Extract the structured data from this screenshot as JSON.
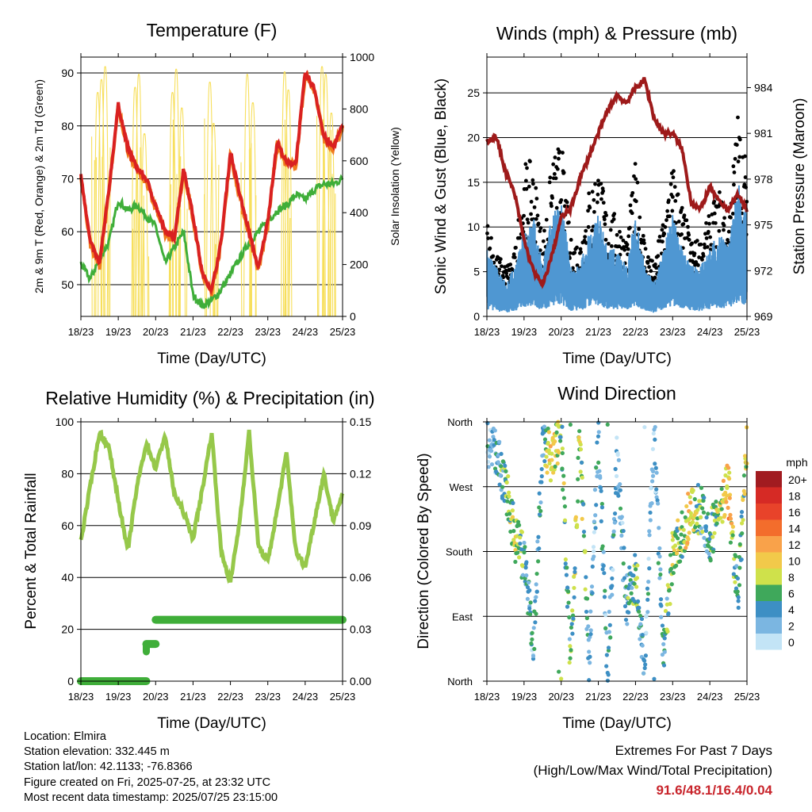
{
  "colors": {
    "temp_2m": "#d92121",
    "temp_9m": "#f07b1c",
    "dewpoint": "#3fae39",
    "insolation": "#f7df5c",
    "wind": "#4f97d2",
    "gust": "#000000",
    "pressure": "#9e1a1a",
    "rh": "#96c84a",
    "precip": "#3fae39",
    "extremes": "#c8242b"
  },
  "time_ticks": [
    "18/23",
    "19/23",
    "20/23",
    "21/23",
    "22/23",
    "23/23",
    "24/23",
    "25/23"
  ],
  "charts": {
    "temperature": {
      "title": "Temperature (F)",
      "xlabel": "Time (Day/UTC)",
      "ylabel": "2m & 9m T (Red, Orange) & 2m Td (Green)",
      "ylabel_right": "Solar Insolation (Yellow)",
      "yticks": [
        "50",
        "60",
        "70",
        "80",
        "90"
      ],
      "yticks_right": [
        "0",
        "200",
        "400",
        "600",
        "800",
        "1000"
      ]
    },
    "winds": {
      "title": "Winds (mph) & Pressure (mb)",
      "xlabel": "Time (Day/UTC)",
      "ylabel": "Sonic Wind & Gust (Blue, Black)",
      "ylabel_right": "Station Pressure (Maroon)",
      "yticks": [
        "0",
        "5",
        "10",
        "15",
        "20",
        "25"
      ],
      "yticks_right": [
        "969",
        "972",
        "975",
        "978",
        "981",
        "984"
      ]
    },
    "humidity": {
      "title": "Relative Humidity (%) & Precipitation (in)",
      "xlabel": "Time (Day/UTC)",
      "ylabel": "Percent & Total Rainfall",
      "yticks": [
        "0",
        "20",
        "40",
        "60",
        "80",
        "100"
      ],
      "yticks_right": [
        "0.00",
        "0.03",
        "0.06",
        "0.09",
        "0.12",
        "0.15"
      ]
    },
    "direction": {
      "title": "Wind Direction",
      "xlabel": "Time (Day/UTC)",
      "ylabel": "Direction (Colored By Speed)",
      "yticks": [
        "North",
        "East",
        "South",
        "West",
        "North"
      ],
      "legend_title": "mph",
      "legend_labels": [
        "20+",
        "18",
        "16",
        "14",
        "12",
        "10",
        "8",
        "6",
        "4",
        "2",
        "0"
      ],
      "legend_colors": [
        "#a11b20",
        "#d62a25",
        "#e8432a",
        "#f36d2c",
        "#f9a24a",
        "#f2c94a",
        "#cfe14b",
        "#3fa85b",
        "#3d8fc4",
        "#7bb6e1",
        "#c3e4f6"
      ]
    }
  },
  "chart_data": [
    {
      "type": "line",
      "title": "Temperature (F)",
      "xlabel": "Time (Day/UTC)",
      "ylabel": "2m & 9m T (Red, Orange) & 2m Td (Green)",
      "y2label": "Solar Insolation (Yellow)",
      "x": [
        0,
        0.25,
        0.5,
        0.75,
        1,
        1.25,
        1.5,
        1.75,
        2,
        2.25,
        2.5,
        2.75,
        3,
        3.25,
        3.5,
        3.75,
        4,
        4.25,
        4.5,
        4.75,
        5,
        5.25,
        5.5,
        5.75,
        6,
        6.25,
        6.5,
        6.75,
        7
      ],
      "x_unit": "days since 18/23",
      "ylim": [
        44,
        93
      ],
      "y2lim": [
        0,
        1000
      ],
      "series": [
        {
          "values": [
            71,
            58,
            54,
            68,
            84,
            76,
            72,
            70,
            65,
            60,
            59,
            72,
            63,
            52,
            49,
            58,
            75,
            67,
            60,
            53,
            62,
            77,
            73,
            73,
            90,
            87,
            78,
            76,
            80
          ]
        },
        {
          "values": [
            54,
            51,
            55,
            58,
            66,
            64,
            65,
            63,
            61,
            54,
            57,
            60,
            48,
            46,
            47,
            49,
            52,
            55,
            58,
            60,
            62,
            64,
            65,
            67,
            66,
            68,
            69,
            69,
            70
          ]
        },
        {
          "peaks": [
            0.45,
            0.55,
            0.65,
            1.45,
            1.55,
            1.7,
            2.45,
            2.55,
            2.7,
            3.45,
            3.55,
            4.45,
            4.6,
            5.45,
            5.55,
            6.45,
            6.55,
            6.7
          ],
          "peak_values": [
            860,
            910,
            960,
            880,
            930,
            700,
            860,
            950,
            800,
            900,
            740,
            930,
            820,
            940,
            870,
            960,
            930,
            780
          ]
        }
      ]
    },
    {
      "type": "line",
      "title": "Winds (mph) & Pressure (mb)",
      "xlabel": "Time (Day/UTC)",
      "ylabel": "Sonic Wind & Gust (Blue, Black)",
      "y2label": "Station Pressure (Maroon)",
      "ylim": [
        0,
        29
      ],
      "y2lim": [
        969,
        986
      ],
      "x": [
        0,
        0.25,
        0.5,
        0.75,
        1,
        1.25,
        1.5,
        1.75,
        2,
        2.25,
        2.5,
        2.75,
        3,
        3.25,
        3.5,
        3.75,
        4,
        4.25,
        4.5,
        4.75,
        5,
        5.25,
        5.5,
        5.75,
        6,
        6.25,
        6.5,
        6.75,
        7
      ],
      "series": [
        {
          "values": [
            4,
            3,
            2,
            3,
            5,
            6,
            3,
            6,
            7,
            3,
            3,
            5,
            6,
            4,
            4,
            3,
            6,
            3,
            2,
            4,
            6,
            4,
            3,
            3,
            4,
            5,
            4,
            8,
            6
          ]
        },
        {
          "values": [
            8,
            5,
            4,
            5,
            12,
            12,
            6,
            12,
            14,
            6,
            6,
            10,
            12,
            8,
            8,
            6,
            12,
            6,
            4,
            8,
            12,
            9,
            6,
            6,
            8,
            10,
            8,
            16,
            12
          ]
        },
        {
          "values": [
            980.5,
            980.8,
            978.5,
            977,
            974,
            972,
            971,
            973,
            975.5,
            976,
            978,
            979.5,
            981,
            982.5,
            983.5,
            983,
            984,
            984.5,
            982,
            981,
            981,
            980,
            976.5,
            976,
            977.5,
            976.5,
            976,
            977,
            976
          ]
        }
      ]
    },
    {
      "type": "line",
      "title": "Relative Humidity (%) & Precipitation (in)",
      "xlabel": "Time (Day/UTC)",
      "ylabel": "Percent & Total Rainfall",
      "ylim": [
        0,
        100
      ],
      "y2lim": [
        0,
        0.15
      ],
      "x": [
        0,
        0.25,
        0.5,
        0.75,
        1,
        1.25,
        1.5,
        1.75,
        2,
        2.25,
        2.5,
        2.75,
        3,
        3.25,
        3.5,
        3.75,
        4,
        4.25,
        4.5,
        4.75,
        5,
        5.25,
        5.5,
        5.75,
        6,
        6.25,
        6.5,
        6.75,
        7
      ],
      "series": [
        {
          "values": [
            54,
            75,
            96,
            90,
            70,
            50,
            75,
            92,
            82,
            95,
            72,
            65,
            55,
            74,
            96,
            50,
            38,
            62,
            96,
            52,
            46,
            66,
            88,
            50,
            44,
            62,
            80,
            62,
            72
          ]
        },
        {
          "values": [
            0,
            0,
            0,
            0,
            0,
            0,
            0.01,
            0.02,
            0.035,
            0.035,
            0.035,
            0.035,
            0.035,
            0.035,
            0.035,
            0.035,
            0.035,
            0.035,
            0.035,
            0.035,
            0.035,
            0.035,
            0.035,
            0.035,
            0.035,
            0.035,
            0.035,
            0.035,
            0.035
          ]
        }
      ]
    },
    {
      "type": "scatter",
      "title": "Wind Direction",
      "xlabel": "Time (Day/UTC)",
      "ylabel": "Direction (Colored By Speed)",
      "ylim": [
        0,
        360
      ],
      "x": [
        0,
        0.25,
        0.5,
        0.75,
        1,
        1.25,
        1.5,
        1.75,
        2,
        2.25,
        2.5,
        2.75,
        3,
        3.25,
        3.5,
        3.75,
        4,
        4.25,
        4.5,
        4.75,
        5,
        5.25,
        5.5,
        5.75,
        6,
        6.25,
        6.5,
        6.75,
        7
      ],
      "direction": [
        330,
        320,
        270,
        200,
        170,
        40,
        330,
        310,
        350,
        20,
        350,
        20,
        340,
        10,
        310,
        110,
        150,
        20,
        350,
        30,
        180,
        200,
        240,
        240,
        200,
        230,
        270,
        110,
        340
      ],
      "speed": [
        2,
        3,
        6,
        8,
        5,
        3,
        4,
        10,
        7,
        5,
        8,
        4,
        3,
        4,
        2,
        4,
        6,
        3,
        2,
        4,
        8,
        7,
        10,
        5,
        4,
        8,
        11,
        4,
        9
      ]
    }
  ],
  "footer": {
    "location": "Location: Elmira",
    "elevation": "Station elevation: 332.445 m",
    "latlon": "Station lat/lon: 42.1133; -76.8366",
    "created": "Figure created on Fri, 2025-07-25, at 23:32 UTC",
    "recent": "Most recent data timestamp: 2025/07/25 23:15:00"
  },
  "extremes": {
    "title": "Extremes For Past 7 Days",
    "subtitle": "(High/Low/Max Wind/Total Precipitation)",
    "values": "91.6/48.1/16.4/0.04"
  }
}
